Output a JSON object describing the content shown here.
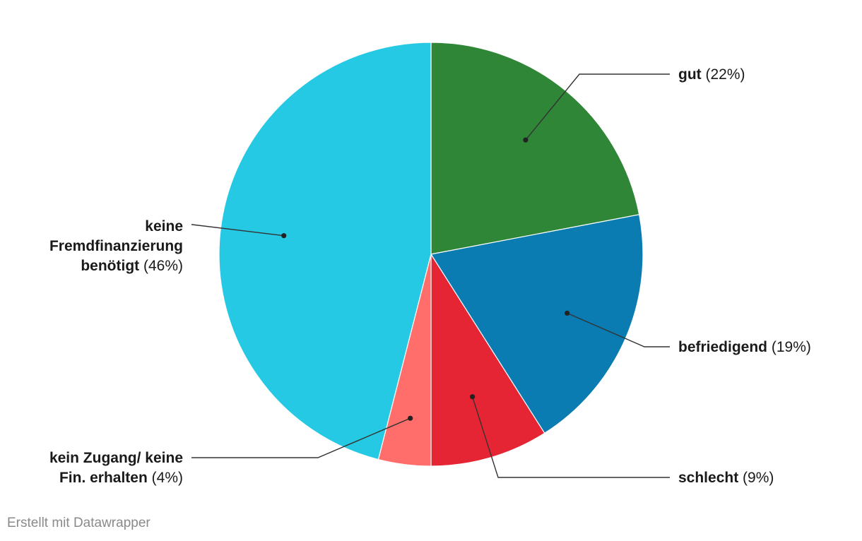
{
  "chart_data": {
    "type": "pie",
    "slices": [
      {
        "name": "gut",
        "label_lines": [
          "gut"
        ],
        "value": 22,
        "display": "(22%)",
        "color": "#2e8636"
      },
      {
        "name": "befriedigend",
        "label_lines": [
          "befriedigend"
        ],
        "value": 19,
        "display": "(19%)",
        "color": "#0a7cb1"
      },
      {
        "name": "schlecht",
        "label_lines": [
          "schlecht"
        ],
        "value": 9,
        "display": "(9%)",
        "color": "#e52533"
      },
      {
        "name": "kein Zugang/ keine Fin. erhalten",
        "label_lines": [
          "kein Zugang/ keine",
          "Fin. erhalten"
        ],
        "value": 4,
        "display": "(4%)",
        "color": "#ff6e6b"
      },
      {
        "name": "keine Fremdfinanzierung benötigt",
        "label_lines": [
          "keine",
          "Fremdfinanzierung",
          "benötigt"
        ],
        "value": 46,
        "display": "(46%)",
        "color": "#25c9e3"
      }
    ],
    "start": "top",
    "direction": "clockwise",
    "legend": "none"
  },
  "footer": {
    "credit": "Erstellt mit Datawrapper"
  }
}
